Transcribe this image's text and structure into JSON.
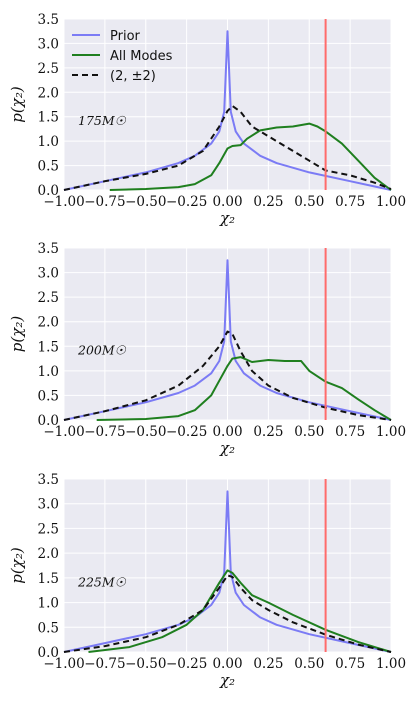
{
  "chart_data": [
    {
      "type": "line",
      "xlabel": "χ₂",
      "ylabel": "p(χ₂)",
      "annotation": "175M☉",
      "xlim": [
        -1.0,
        1.0
      ],
      "ylim": [
        0.0,
        3.5
      ],
      "xticks": [
        "−1.00",
        "−0.75",
        "−0.50",
        "−0.25",
        "0.00",
        "0.25",
        "0.50",
        "0.75",
        "1.00"
      ],
      "yticks": [
        "0.0",
        "0.5",
        "1.0",
        "1.5",
        "2.0",
        "2.5",
        "3.0",
        "3.5"
      ],
      "grid": true,
      "legend": {
        "position": "top-left",
        "entries": [
          "Prior",
          "All Modes",
          "(2, ±2)"
        ]
      },
      "vline": {
        "x": 0.6,
        "color": "#ff6b6b"
      },
      "series": [
        {
          "name": "Prior",
          "color": "#7b7bf5",
          "style": "solid",
          "x": [
            -1.0,
            -0.75,
            -0.5,
            -0.3,
            -0.2,
            -0.1,
            -0.05,
            -0.02,
            0.0,
            0.02,
            0.05,
            0.1,
            0.2,
            0.3,
            0.5,
            0.75,
            1.0
          ],
          "y": [
            0.0,
            0.18,
            0.36,
            0.55,
            0.7,
            0.95,
            1.2,
            1.6,
            3.25,
            1.6,
            1.2,
            0.95,
            0.7,
            0.55,
            0.36,
            0.18,
            0.0
          ]
        },
        {
          "name": "All Modes",
          "color": "#1f7f1f",
          "style": "solid",
          "x": [
            -0.72,
            -0.5,
            -0.3,
            -0.2,
            -0.1,
            -0.05,
            0.0,
            0.03,
            0.08,
            0.12,
            0.2,
            0.3,
            0.4,
            0.5,
            0.55,
            0.6,
            0.7,
            0.8,
            0.9,
            1.0
          ],
          "y": [
            0.0,
            0.02,
            0.06,
            0.12,
            0.3,
            0.55,
            0.85,
            0.9,
            0.92,
            1.05,
            1.22,
            1.28,
            1.3,
            1.36,
            1.3,
            1.2,
            0.95,
            0.6,
            0.25,
            0.0
          ]
        },
        {
          "name": "(2, ±2)",
          "color": "#111111",
          "style": "dashed",
          "x": [
            -1.0,
            -0.75,
            -0.5,
            -0.3,
            -0.15,
            -0.05,
            0.0,
            0.03,
            0.08,
            0.15,
            0.25,
            0.4,
            0.5,
            0.6,
            0.75,
            0.9,
            1.0
          ],
          "y": [
            0.0,
            0.18,
            0.33,
            0.5,
            0.8,
            1.3,
            1.62,
            1.72,
            1.6,
            1.3,
            1.1,
            0.8,
            0.6,
            0.4,
            0.3,
            0.15,
            0.02
          ]
        }
      ]
    },
    {
      "type": "line",
      "xlabel": "χ₂",
      "ylabel": "p(χ₂)",
      "annotation": "200M☉",
      "xlim": [
        -1.0,
        1.0
      ],
      "ylim": [
        0.0,
        3.5
      ],
      "xticks": [
        "−1.00",
        "−0.75",
        "−0.50",
        "−0.25",
        "0.00",
        "0.25",
        "0.50",
        "0.75",
        "1.00"
      ],
      "yticks": [
        "0.0",
        "0.5",
        "1.0",
        "1.5",
        "2.0",
        "2.5",
        "3.0",
        "3.5"
      ],
      "grid": true,
      "vline": {
        "x": 0.6,
        "color": "#ff6b6b"
      },
      "series": [
        {
          "name": "Prior",
          "color": "#7b7bf5",
          "style": "solid",
          "x": [
            -1.0,
            -0.75,
            -0.5,
            -0.3,
            -0.2,
            -0.1,
            -0.05,
            -0.02,
            0.0,
            0.02,
            0.05,
            0.1,
            0.2,
            0.3,
            0.5,
            0.75,
            1.0
          ],
          "y": [
            0.0,
            0.18,
            0.36,
            0.55,
            0.7,
            0.95,
            1.2,
            1.6,
            3.25,
            1.6,
            1.2,
            0.95,
            0.7,
            0.55,
            0.36,
            0.18,
            0.0
          ]
        },
        {
          "name": "All Modes",
          "color": "#1f7f1f",
          "style": "solid",
          "x": [
            -0.8,
            -0.5,
            -0.3,
            -0.2,
            -0.1,
            -0.05,
            0.0,
            0.03,
            0.08,
            0.15,
            0.25,
            0.35,
            0.45,
            0.5,
            0.6,
            0.7,
            0.8,
            0.9,
            1.0
          ],
          "y": [
            0.0,
            0.02,
            0.08,
            0.2,
            0.5,
            0.8,
            1.1,
            1.25,
            1.28,
            1.18,
            1.22,
            1.2,
            1.2,
            1.0,
            0.78,
            0.65,
            0.42,
            0.2,
            0.0
          ]
        },
        {
          "name": "(2, ±2)",
          "color": "#111111",
          "style": "dashed",
          "x": [
            -1.0,
            -0.75,
            -0.5,
            -0.3,
            -0.15,
            -0.05,
            0.0,
            0.03,
            0.08,
            0.15,
            0.25,
            0.4,
            0.6,
            0.8,
            1.0
          ],
          "y": [
            0.0,
            0.18,
            0.4,
            0.7,
            1.1,
            1.5,
            1.8,
            1.75,
            1.4,
            1.0,
            0.7,
            0.45,
            0.25,
            0.1,
            0.0
          ]
        }
      ]
    },
    {
      "type": "line",
      "xlabel": "χ₂",
      "ylabel": "p(χ₂)",
      "annotation": "225M☉",
      "xlim": [
        -1.0,
        1.0
      ],
      "ylim": [
        0.0,
        3.5
      ],
      "xticks": [
        "−1.00",
        "−0.75",
        "−0.50",
        "−0.25",
        "0.00",
        "0.25",
        "0.50",
        "0.75",
        "1.00"
      ],
      "yticks": [
        "0.0",
        "0.5",
        "1.0",
        "1.5",
        "2.0",
        "2.5",
        "3.0",
        "3.5"
      ],
      "grid": true,
      "vline": {
        "x": 0.6,
        "color": "#ff6b6b"
      },
      "series": [
        {
          "name": "Prior",
          "color": "#7b7bf5",
          "style": "solid",
          "x": [
            -1.0,
            -0.75,
            -0.5,
            -0.3,
            -0.2,
            -0.1,
            -0.05,
            -0.02,
            0.0,
            0.02,
            0.05,
            0.1,
            0.2,
            0.3,
            0.5,
            0.75,
            1.0
          ],
          "y": [
            0.0,
            0.18,
            0.36,
            0.55,
            0.7,
            0.95,
            1.2,
            1.6,
            3.25,
            1.6,
            1.2,
            0.95,
            0.7,
            0.55,
            0.36,
            0.18,
            0.0
          ]
        },
        {
          "name": "All Modes",
          "color": "#1f7f1f",
          "style": "solid",
          "x": [
            -0.85,
            -0.6,
            -0.4,
            -0.25,
            -0.15,
            -0.05,
            0.0,
            0.03,
            0.08,
            0.15,
            0.25,
            0.4,
            0.6,
            0.8,
            1.0
          ],
          "y": [
            0.0,
            0.1,
            0.3,
            0.55,
            0.85,
            1.4,
            1.65,
            1.6,
            1.4,
            1.15,
            1.0,
            0.75,
            0.45,
            0.2,
            0.0
          ]
        },
        {
          "name": "(2, ±2)",
          "color": "#111111",
          "style": "dashed",
          "x": [
            -1.0,
            -0.75,
            -0.5,
            -0.3,
            -0.15,
            -0.05,
            0.0,
            0.03,
            0.08,
            0.15,
            0.25,
            0.4,
            0.6,
            0.8,
            1.0
          ],
          "y": [
            0.0,
            0.12,
            0.3,
            0.55,
            0.85,
            1.3,
            1.55,
            1.52,
            1.3,
            1.05,
            0.85,
            0.6,
            0.35,
            0.15,
            0.0
          ]
        }
      ]
    }
  ]
}
